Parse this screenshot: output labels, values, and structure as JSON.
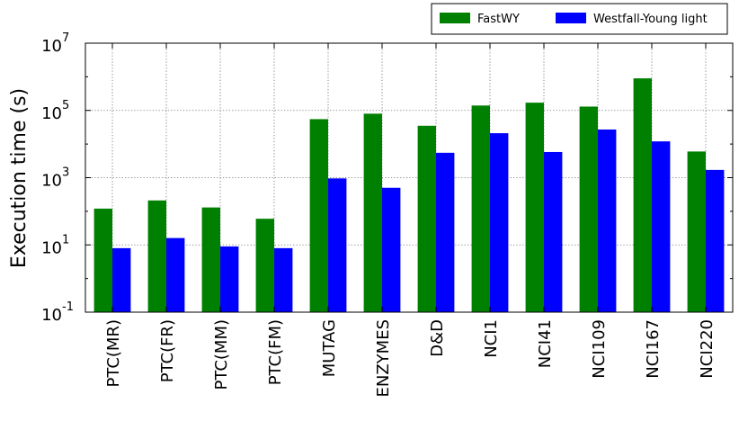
{
  "chart_data": {
    "type": "bar",
    "ylabel": "Execution time (s)",
    "xlabel": "",
    "yscale": "log",
    "ylim": [
      0.1,
      10000000
    ],
    "yticks": [
      {
        "value": 0.1,
        "base": "10",
        "exp": "-1"
      },
      {
        "value": 10,
        "base": "10",
        "exp": "1"
      },
      {
        "value": 1000,
        "base": "10",
        "exp": "3"
      },
      {
        "value": 100000,
        "base": "10",
        "exp": "5"
      },
      {
        "value": 10000000,
        "base": "10",
        "exp": "7"
      }
    ],
    "grid": true,
    "legend_position": "top-right, above plot",
    "categories": [
      "PTC(MR)",
      "PTC(FR)",
      "PTC(MM)",
      "PTC(FM)",
      "MUTAG",
      "ENZYMES",
      "D&D",
      "NCI1",
      "NCI41",
      "NCI109",
      "NCI167",
      "NCI220"
    ],
    "series": [
      {
        "name": "FastWY",
        "color": "#008000",
        "values": [
          120,
          210,
          130,
          60,
          55000,
          80000,
          35000,
          140000,
          170000,
          130000,
          900000,
          6000
        ]
      },
      {
        "name": "Westfall-Young light",
        "color": "#0000ff",
        "values": [
          8,
          16,
          9,
          8,
          950,
          500,
          5500,
          21000,
          5800,
          27000,
          12000,
          1700
        ]
      }
    ]
  }
}
